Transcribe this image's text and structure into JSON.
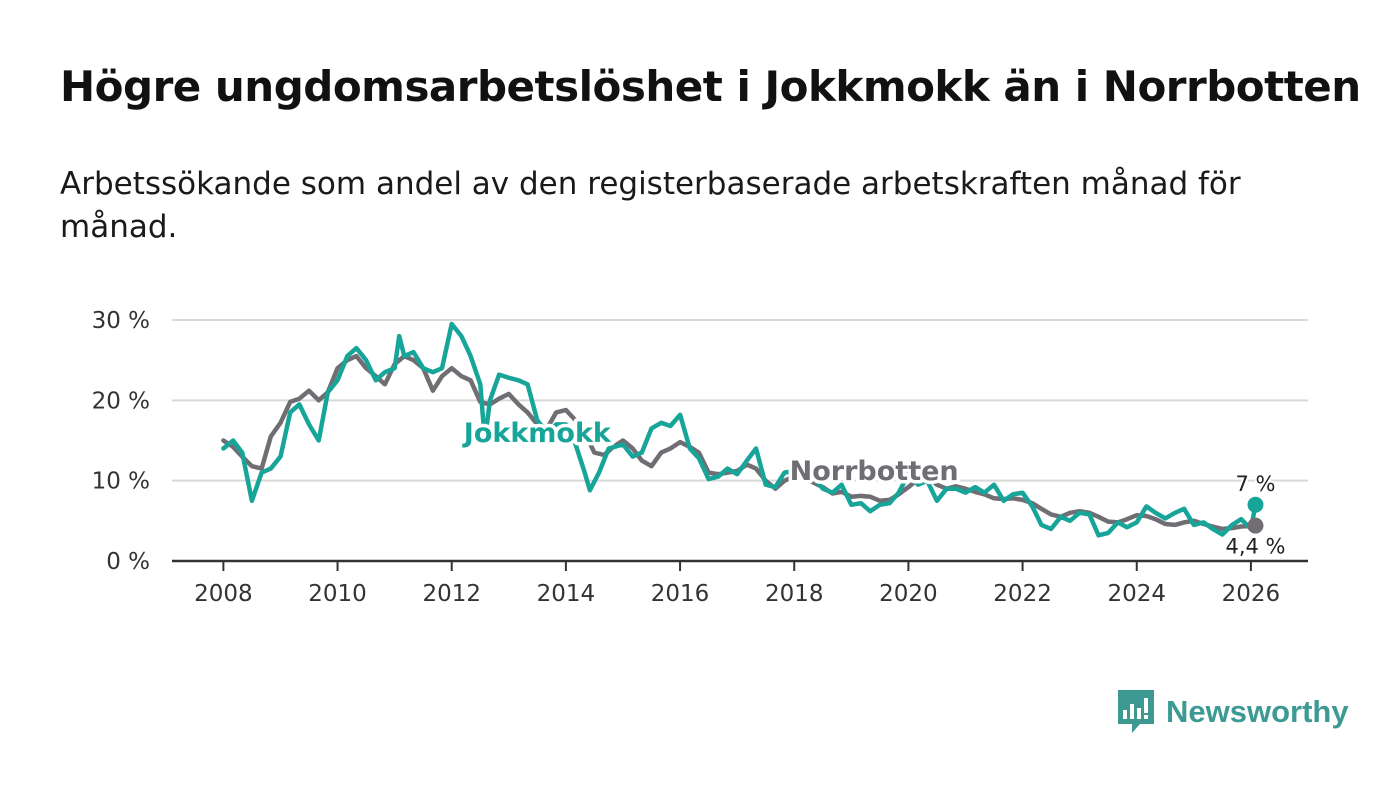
{
  "header": {
    "title": "Högre ungdomsarbetslöshet i Jokkmokk än i Norrbotten",
    "subtitle": "Arbetssökande som andel av den registerbaserade arbetskraften månad för månad."
  },
  "brand": {
    "name": "Newsworthy",
    "icon": "newsworthy-logo-icon",
    "color": "#3d9a93"
  },
  "colors": {
    "jokkmokk": "#17a59a",
    "norrbotten": "#706d73",
    "grid": "#d9d9d9",
    "axis": "#333333"
  },
  "chart_data": {
    "type": "line",
    "title": "Högre ungdomsarbetslöshet i Jokkmokk än i Norrbotten",
    "subtitle": "Arbetssökande som andel av den registerbaserade arbetskraften månad för månad.",
    "xlabel": "",
    "ylabel": "",
    "xlim": [
      2007.1,
      2027.0
    ],
    "ylim": [
      0,
      30
    ],
    "grid": true,
    "x_ticks": [
      {
        "value": 2008,
        "label": "2008"
      },
      {
        "value": 2010,
        "label": "2010"
      },
      {
        "value": 2012,
        "label": "2012"
      },
      {
        "value": 2014,
        "label": "2014"
      },
      {
        "value": 2016,
        "label": "2016"
      },
      {
        "value": 2018,
        "label": "2018"
      },
      {
        "value": 2020,
        "label": "2020"
      },
      {
        "value": 2022,
        "label": "2022"
      },
      {
        "value": 2024,
        "label": "2024"
      },
      {
        "value": 2026,
        "label": "2026"
      }
    ],
    "y_ticks": [
      {
        "value": 0,
        "label": "0 %"
      },
      {
        "value": 10,
        "label": "10 %"
      },
      {
        "value": 20,
        "label": "20 %"
      },
      {
        "value": 30,
        "label": "30 %"
      }
    ],
    "series": [
      {
        "name": "Norrbotten",
        "label": "Norrbotten",
        "label_at": [
          2019.4,
          10.1
        ],
        "end_label": "4,4 %",
        "end_label_side": "below",
        "color": "#706d73",
        "points": [
          [
            2008.0,
            15.0
          ],
          [
            2008.17,
            14.2
          ],
          [
            2008.33,
            13.0
          ],
          [
            2008.5,
            11.8
          ],
          [
            2008.67,
            11.5
          ],
          [
            2008.83,
            15.5
          ],
          [
            2009.0,
            17.2
          ],
          [
            2009.17,
            19.8
          ],
          [
            2009.33,
            20.2
          ],
          [
            2009.5,
            21.2
          ],
          [
            2009.67,
            20.0
          ],
          [
            2009.83,
            21.0
          ],
          [
            2010.0,
            24.0
          ],
          [
            2010.17,
            25.0
          ],
          [
            2010.33,
            25.5
          ],
          [
            2010.5,
            24.0
          ],
          [
            2010.67,
            23.0
          ],
          [
            2010.83,
            22.0
          ],
          [
            2011.0,
            24.5
          ],
          [
            2011.17,
            25.5
          ],
          [
            2011.33,
            25.0
          ],
          [
            2011.5,
            24.0
          ],
          [
            2011.67,
            21.2
          ],
          [
            2011.83,
            23.0
          ],
          [
            2012.0,
            24.0
          ],
          [
            2012.17,
            23.0
          ],
          [
            2012.33,
            22.5
          ],
          [
            2012.5,
            19.8
          ],
          [
            2012.67,
            19.5
          ],
          [
            2012.83,
            20.2
          ],
          [
            2013.0,
            20.8
          ],
          [
            2013.17,
            19.5
          ],
          [
            2013.33,
            18.5
          ],
          [
            2013.5,
            17.0
          ],
          [
            2013.67,
            16.5
          ],
          [
            2013.83,
            18.5
          ],
          [
            2014.0,
            18.8
          ],
          [
            2014.17,
            17.5
          ],
          [
            2014.33,
            16.0
          ],
          [
            2014.5,
            13.5
          ],
          [
            2014.67,
            13.2
          ],
          [
            2014.83,
            14.2
          ],
          [
            2015.0,
            15.0
          ],
          [
            2015.17,
            14.0
          ],
          [
            2015.33,
            12.5
          ],
          [
            2015.5,
            11.8
          ],
          [
            2015.67,
            13.5
          ],
          [
            2015.83,
            14.0
          ],
          [
            2016.0,
            14.8
          ],
          [
            2016.17,
            14.2
          ],
          [
            2016.33,
            13.5
          ],
          [
            2016.5,
            11.0
          ],
          [
            2016.67,
            10.8
          ],
          [
            2016.83,
            11.0
          ],
          [
            2017.0,
            11.2
          ],
          [
            2017.17,
            12.0
          ],
          [
            2017.33,
            11.5
          ],
          [
            2017.5,
            10.0
          ],
          [
            2017.67,
            9.0
          ],
          [
            2017.83,
            10.0
          ],
          [
            2018.0,
            10.5
          ],
          [
            2018.17,
            10.2
          ],
          [
            2018.33,
            9.8
          ],
          [
            2018.5,
            9.2
          ],
          [
            2018.67,
            8.4
          ],
          [
            2018.83,
            8.6
          ],
          [
            2019.0,
            8.0
          ],
          [
            2019.17,
            8.1
          ],
          [
            2019.33,
            8.0
          ],
          [
            2019.5,
            7.5
          ],
          [
            2019.67,
            7.6
          ],
          [
            2019.83,
            8.3
          ],
          [
            2020.0,
            9.2
          ],
          [
            2020.17,
            10.2
          ],
          [
            2020.33,
            10.5
          ],
          [
            2020.5,
            9.5
          ],
          [
            2020.67,
            9.0
          ],
          [
            2020.83,
            9.3
          ],
          [
            2021.0,
            9.0
          ],
          [
            2021.17,
            8.6
          ],
          [
            2021.33,
            8.3
          ],
          [
            2021.5,
            7.8
          ],
          [
            2021.67,
            7.7
          ],
          [
            2021.83,
            7.8
          ],
          [
            2022.0,
            7.6
          ],
          [
            2022.17,
            7.2
          ],
          [
            2022.33,
            6.5
          ],
          [
            2022.5,
            5.8
          ],
          [
            2022.67,
            5.5
          ],
          [
            2022.83,
            6.0
          ],
          [
            2023.0,
            6.2
          ],
          [
            2023.17,
            6.0
          ],
          [
            2023.33,
            5.5
          ],
          [
            2023.5,
            4.9
          ],
          [
            2023.67,
            4.8
          ],
          [
            2023.83,
            5.2
          ],
          [
            2024.0,
            5.7
          ],
          [
            2024.17,
            5.6
          ],
          [
            2024.33,
            5.2
          ],
          [
            2024.5,
            4.6
          ],
          [
            2024.67,
            4.5
          ],
          [
            2024.83,
            4.8
          ],
          [
            2025.0,
            5.0
          ],
          [
            2025.17,
            4.6
          ],
          [
            2025.33,
            4.3
          ],
          [
            2025.5,
            4.0
          ],
          [
            2025.67,
            4.1
          ],
          [
            2025.83,
            4.3
          ],
          [
            2026.08,
            4.4
          ]
        ]
      },
      {
        "name": "Jokkmokk",
        "label": "Jokkmokk",
        "label_at": [
          2013.5,
          14.8
        ],
        "end_label": "7 %",
        "end_label_side": "above",
        "color": "#17a59a",
        "points": [
          [
            2008.0,
            14.0
          ],
          [
            2008.17,
            15.0
          ],
          [
            2008.33,
            13.5
          ],
          [
            2008.5,
            7.5
          ],
          [
            2008.67,
            11.0
          ],
          [
            2008.83,
            11.5
          ],
          [
            2009.0,
            13.0
          ],
          [
            2009.17,
            18.5
          ],
          [
            2009.33,
            19.5
          ],
          [
            2009.5,
            17.0
          ],
          [
            2009.67,
            15.0
          ],
          [
            2009.83,
            21.0
          ],
          [
            2010.0,
            22.5
          ],
          [
            2010.17,
            25.5
          ],
          [
            2010.33,
            26.5
          ],
          [
            2010.5,
            25.0
          ],
          [
            2010.67,
            22.5
          ],
          [
            2010.83,
            23.5
          ],
          [
            2011.0,
            24.0
          ],
          [
            2011.08,
            28.0
          ],
          [
            2011.17,
            25.5
          ],
          [
            2011.33,
            26.0
          ],
          [
            2011.5,
            24.0
          ],
          [
            2011.67,
            23.5
          ],
          [
            2011.83,
            24.0
          ],
          [
            2012.0,
            29.5
          ],
          [
            2012.17,
            28.0
          ],
          [
            2012.33,
            25.5
          ],
          [
            2012.5,
            22.0
          ],
          [
            2012.58,
            15.0
          ],
          [
            2012.67,
            20.0
          ],
          [
            2012.83,
            23.2
          ],
          [
            2013.0,
            22.8
          ],
          [
            2013.17,
            22.5
          ],
          [
            2013.33,
            22.0
          ],
          [
            2013.5,
            17.5
          ],
          [
            2013.67,
            16.0
          ],
          [
            2013.83,
            17.0
          ],
          [
            2014.0,
            17.0
          ],
          [
            2014.17,
            14.5
          ],
          [
            2014.33,
            11.0
          ],
          [
            2014.42,
            8.8
          ],
          [
            2014.58,
            11.0
          ],
          [
            2014.75,
            14.0
          ],
          [
            2015.0,
            14.5
          ],
          [
            2015.17,
            13.0
          ],
          [
            2015.33,
            13.5
          ],
          [
            2015.5,
            16.5
          ],
          [
            2015.67,
            17.2
          ],
          [
            2015.83,
            16.8
          ],
          [
            2016.0,
            18.2
          ],
          [
            2016.17,
            14.0
          ],
          [
            2016.33,
            12.8
          ],
          [
            2016.5,
            10.2
          ],
          [
            2016.67,
            10.5
          ],
          [
            2016.83,
            11.5
          ],
          [
            2017.0,
            10.8
          ],
          [
            2017.17,
            12.5
          ],
          [
            2017.33,
            14.0
          ],
          [
            2017.5,
            9.5
          ],
          [
            2017.67,
            9.2
          ],
          [
            2017.83,
            11.0
          ],
          [
            2018.0,
            11.2
          ],
          [
            2018.17,
            11.8
          ],
          [
            2018.33,
            10.5
          ],
          [
            2018.5,
            9.0
          ],
          [
            2018.67,
            8.5
          ],
          [
            2018.83,
            9.5
          ],
          [
            2019.0,
            7.0
          ],
          [
            2019.17,
            7.2
          ],
          [
            2019.33,
            6.2
          ],
          [
            2019.5,
            7.0
          ],
          [
            2019.67,
            7.2
          ],
          [
            2019.83,
            8.5
          ],
          [
            2020.0,
            10.8
          ],
          [
            2020.17,
            9.5
          ],
          [
            2020.33,
            10.0
          ],
          [
            2020.5,
            7.5
          ],
          [
            2020.67,
            9.0
          ],
          [
            2020.83,
            9.0
          ],
          [
            2021.0,
            8.5
          ],
          [
            2021.17,
            9.2
          ],
          [
            2021.33,
            8.5
          ],
          [
            2021.5,
            9.5
          ],
          [
            2021.67,
            7.5
          ],
          [
            2021.83,
            8.3
          ],
          [
            2022.0,
            8.5
          ],
          [
            2022.17,
            6.8
          ],
          [
            2022.33,
            4.5
          ],
          [
            2022.5,
            4.0
          ],
          [
            2022.67,
            5.5
          ],
          [
            2022.83,
            5.0
          ],
          [
            2023.0,
            6.0
          ],
          [
            2023.17,
            5.8
          ],
          [
            2023.33,
            3.2
          ],
          [
            2023.5,
            3.5
          ],
          [
            2023.67,
            4.8
          ],
          [
            2023.83,
            4.2
          ],
          [
            2024.0,
            4.8
          ],
          [
            2024.17,
            6.8
          ],
          [
            2024.33,
            6.0
          ],
          [
            2024.5,
            5.3
          ],
          [
            2024.67,
            6.0
          ],
          [
            2024.83,
            6.5
          ],
          [
            2025.0,
            4.5
          ],
          [
            2025.17,
            4.8
          ],
          [
            2025.33,
            4.0
          ],
          [
            2025.5,
            3.3
          ],
          [
            2025.67,
            4.5
          ],
          [
            2025.83,
            5.2
          ],
          [
            2026.0,
            4.0
          ],
          [
            2026.08,
            7.0
          ]
        ]
      }
    ]
  }
}
